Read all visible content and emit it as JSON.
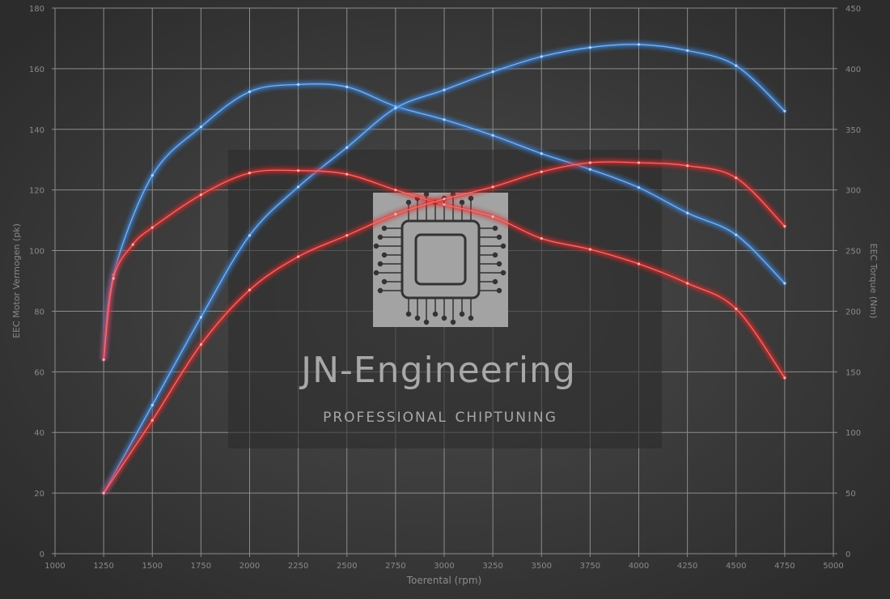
{
  "chart_data": {
    "type": "line",
    "title": "",
    "xlabel": "Toerental (rpm)",
    "ylabel": "EEC Motor Vermogen (pk)",
    "y2label": "EEC Torque (Nm)",
    "xlim": [
      1000,
      5000
    ],
    "ylim": [
      0,
      180
    ],
    "y2lim": [
      0,
      450
    ],
    "xticks": [
      "1000",
      "1250",
      "1500",
      "1750",
      "2000",
      "2250",
      "2500",
      "2750",
      "3000",
      "3250",
      "3500",
      "3750",
      "4000",
      "4250",
      "4500",
      "4750",
      "5000"
    ],
    "yticks": [
      "0",
      "20",
      "40",
      "60",
      "80",
      "100",
      "120",
      "140",
      "160",
      "180"
    ],
    "y2ticks": [
      "0",
      "50",
      "100",
      "150",
      "200",
      "250",
      "300",
      "350",
      "400",
      "450"
    ],
    "grid": true,
    "legend": "none",
    "series": [
      {
        "axis": "right",
        "color": "#3a86e0",
        "x": [
          1250,
          1300,
          1500,
          1750,
          2000,
          2250,
          2500,
          2750,
          3000,
          3250,
          3500,
          3750,
          4000,
          4250,
          4500,
          4750
        ],
        "values": [
          160,
          230,
          312,
          352,
          381,
          387,
          385,
          369,
          358,
          345,
          330,
          317,
          302,
          281,
          263,
          223
        ]
      },
      {
        "axis": "left",
        "color": "#3a86e0",
        "x": [
          1250,
          1500,
          1750,
          2000,
          2250,
          2500,
          2750,
          3000,
          3250,
          3500,
          3750,
          4000,
          4250,
          4500,
          4750
        ],
        "values": [
          20,
          49,
          78,
          105,
          121,
          134,
          147,
          153,
          159,
          164,
          167,
          168,
          166,
          161,
          146
        ]
      },
      {
        "axis": "right",
        "color": "#e02a2a",
        "x": [
          1250,
          1300,
          1400,
          1500,
          1750,
          2000,
          2250,
          2500,
          2750,
          3000,
          3250,
          3500,
          3750,
          4000,
          4250,
          4500,
          4750
        ],
        "values": [
          160,
          227,
          255,
          269,
          296,
          314,
          316,
          313,
          300,
          288,
          278,
          260,
          251,
          239,
          223,
          202,
          145
        ]
      },
      {
        "axis": "left",
        "color": "#e02a2a",
        "x": [
          1250,
          1500,
          1750,
          2000,
          2250,
          2500,
          2750,
          3000,
          3250,
          3500,
          3750,
          4000,
          4250,
          4500,
          4750
        ],
        "values": [
          20,
          44,
          69,
          87,
          98,
          105,
          112,
          117,
          121,
          126,
          129,
          129,
          128,
          124,
          108
        ]
      }
    ]
  },
  "watermark": {
    "brand": "JN-Engineering",
    "tagline": "professional chiptuning"
  }
}
